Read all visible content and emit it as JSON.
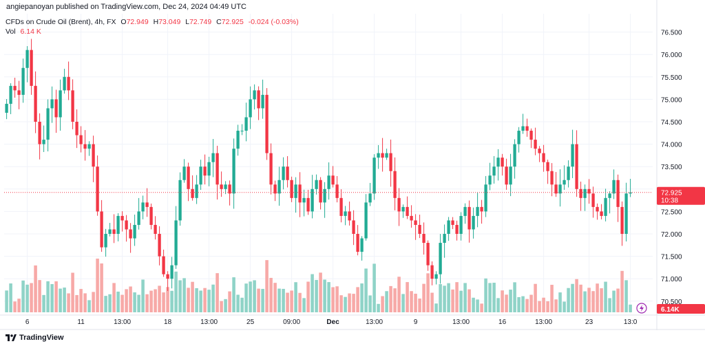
{
  "header": {
    "publisher_line": "angiepanoyan published on TradingView.com, Dec 24, 2024 04:49 UTC"
  },
  "legend": {
    "symbol": "CFDs on Crude Oil (Brent), 4h, FX",
    "open_label": "O",
    "open": "72.949",
    "high_label": "H",
    "high": "73.049",
    "low_label": "L",
    "low": "72.749",
    "close_label": "C",
    "close": "72.925",
    "change": "-0.024 (-0.03%)",
    "vol_label": "Vol",
    "vol": "6.14 K"
  },
  "footer": {
    "brand": "TradingView"
  },
  "colors": {
    "up": "#22ab94",
    "down": "#f23645",
    "vol_up": "#8fd3c7",
    "vol_down": "#f7a9a7"
  },
  "chart_data": {
    "type": "candlestick",
    "title": "CFDs on Crude Oil (Brent), 4h, FX",
    "y_ticks": [
      70.5,
      71.0,
      71.5,
      72.0,
      72.5,
      73.0,
      73.5,
      74.0,
      74.5,
      75.0,
      75.5,
      76.0,
      76.5
    ],
    "y_tick_labels": [
      "70.500",
      "71.000",
      "71.500",
      "72.000",
      "72.500",
      "73.000",
      "73.500",
      "74.000",
      "74.500",
      "75.000",
      "75.500",
      "76.000",
      "76.500"
    ],
    "x_ticks": [
      {
        "label": "6",
        "bar": 5
      },
      {
        "label": "11",
        "bar": 18
      },
      {
        "label": "13:00",
        "bar": 28
      },
      {
        "label": "18",
        "bar": 39
      },
      {
        "label": "13:00",
        "bar": 49
      },
      {
        "label": "25",
        "bar": 59
      },
      {
        "label": "09:00",
        "bar": 69
      },
      {
        "label": "Dec",
        "bar": 79
      },
      {
        "label": "13:00",
        "bar": 89
      },
      {
        "label": "9",
        "bar": 99
      },
      {
        "label": "13:00",
        "bar": 110
      },
      {
        "label": "16",
        "bar": 120
      },
      {
        "label": "13:00",
        "bar": 130
      },
      {
        "label": "23",
        "bar": 141
      },
      {
        "label": "13:0",
        "bar": 151
      }
    ],
    "last_price_label": "72.925",
    "countdown_label": "10:38",
    "volume_label": "6.14K",
    "last_price": 72.925,
    "closes": [
      74.9,
      75.3,
      75.2,
      75.1,
      75.7,
      76.1,
      75.3,
      74.5,
      74.0,
      74.1,
      74.8,
      75.0,
      74.6,
      75.2,
      75.5,
      75.2,
      74.5,
      74.2,
      74.0,
      73.9,
      74.0,
      73.5,
      72.5,
      71.7,
      72.0,
      72.1,
      72.0,
      72.4,
      72.3,
      72.1,
      71.9,
      72.2,
      72.5,
      72.7,
      72.6,
      72.2,
      72.0,
      71.5,
      71.1,
      71.0,
      71.3,
      72.3,
      73.2,
      73.5,
      73.0,
      72.8,
      73.1,
      73.5,
      73.3,
      73.6,
      73.8,
      73.1,
      73.0,
      73.1,
      72.9,
      73.9,
      74.3,
      74.3,
      74.6,
      75.0,
      75.2,
      74.8,
      75.1,
      73.8,
      73.1,
      72.9,
      73.2,
      73.5,
      73.2,
      72.8,
      73.1,
      72.7,
      72.8,
      72.5,
      73.0,
      73.2,
      72.7,
      73.0,
      73.3,
      73.1,
      72.8,
      72.4,
      72.5,
      72.3,
      72.0,
      71.6,
      71.9,
      72.7,
      72.9,
      73.7,
      73.8,
      73.7,
      73.8,
      73.4,
      72.8,
      72.5,
      72.6,
      72.4,
      72.3,
      72.2,
      72.0,
      71.8,
      71.3,
      71.0,
      71.1,
      71.8,
      72.0,
      72.3,
      72.2,
      72.0,
      72.4,
      72.6,
      72.1,
      72.4,
      72.6,
      72.5,
      73.1,
      73.3,
      73.5,
      73.7,
      73.5,
      73.1,
      73.5,
      74.0,
      74.3,
      74.4,
      74.3,
      74.1,
      73.9,
      73.8,
      73.6,
      73.4,
      73.1,
      72.9,
      73.1,
      73.2,
      73.5,
      74.0,
      73.0,
      72.8,
      73.0,
      72.9,
      72.6,
      72.5,
      72.4,
      72.8,
      72.9,
      73.2,
      72.6,
      72.0,
      72.9,
      72.925
    ]
  }
}
